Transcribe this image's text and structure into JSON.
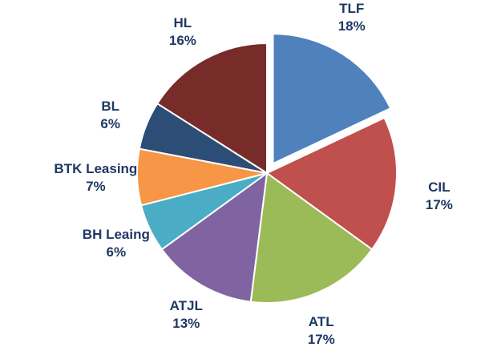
{
  "chart_data": {
    "type": "pie",
    "title": "",
    "slices": [
      {
        "name": "TLF",
        "value": 18,
        "label": "18%",
        "color": "#4f81bd",
        "exploded": true
      },
      {
        "name": "CIL",
        "value": 17,
        "label": "17%",
        "color": "#c0504d",
        "exploded": false
      },
      {
        "name": "ATL",
        "value": 17,
        "label": "17%",
        "color": "#9bbb59",
        "exploded": false
      },
      {
        "name": "ATJL",
        "value": 13,
        "label": "13%",
        "color": "#8064a2",
        "exploded": false
      },
      {
        "name": "BH Leaing",
        "value": 6,
        "label": "6%",
        "color": "#4bacc6",
        "exploded": false
      },
      {
        "name": "BTK Leasing",
        "value": 7,
        "label": "7%",
        "color": "#f79646",
        "exploded": false
      },
      {
        "name": "BL",
        "value": 6,
        "label": "6%",
        "color": "#2c4d75",
        "exploded": false
      },
      {
        "name": "HL",
        "value": 16,
        "label": "16%",
        "color": "#772c2a",
        "exploded": false
      }
    ],
    "legend": "none",
    "label_color": "#1f3864"
  }
}
